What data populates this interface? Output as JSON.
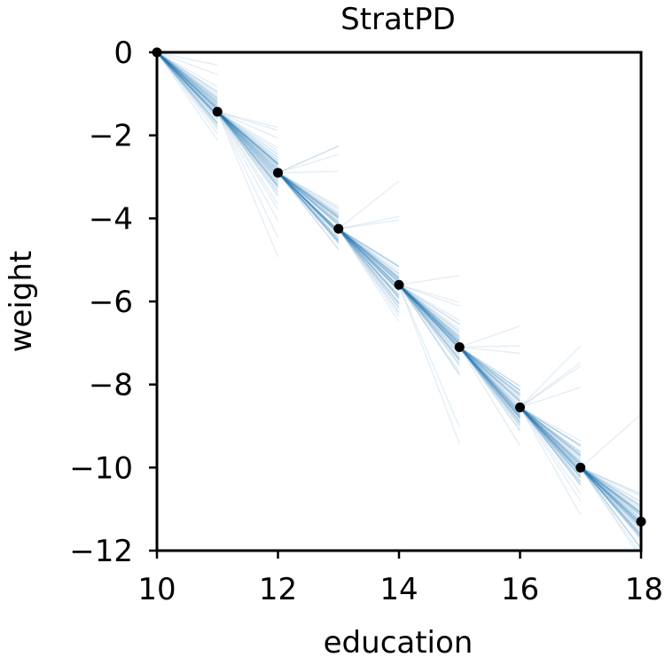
{
  "chart_data": {
    "type": "line",
    "title": "StratPD",
    "xlabel": "education",
    "ylabel": "weight",
    "xlim": [
      10,
      18
    ],
    "ylim": [
      -12,
      0
    ],
    "xticks": [
      10,
      12,
      14,
      16,
      18
    ],
    "yticks": [
      0,
      -2,
      -4,
      -6,
      -8,
      -10,
      -12
    ],
    "xtick_labels": [
      "10",
      "12",
      "14",
      "16",
      "18"
    ],
    "ytick_labels": [
      "0",
      "−2",
      "−4",
      "−6",
      "−8",
      "−10",
      "−12"
    ],
    "grid": false,
    "points": {
      "x": [
        10,
        11,
        12,
        13,
        14,
        15,
        16,
        17,
        18
      ],
      "y": [
        0,
        -1.43,
        -2.9,
        -4.25,
        -5.6,
        -7.1,
        -8.55,
        -10.0,
        -11.3
      ]
    },
    "stratum_lines": {
      "description_free": true,
      "slope_ranges": [
        [
          -2.3,
          -0.3
        ],
        [
          -3.6,
          -0.3
        ],
        [
          -3.5,
          0.8
        ],
        [
          -4.0,
          1.5
        ],
        [
          -4.0,
          0.6
        ],
        [
          -3.8,
          1.1
        ],
        [
          -3.0,
          1.8
        ],
        [
          -2.7,
          1.9
        ]
      ]
    },
    "colors": {
      "lines": "#1f77b4",
      "points": "#000000",
      "axes": "#000000"
    }
  }
}
